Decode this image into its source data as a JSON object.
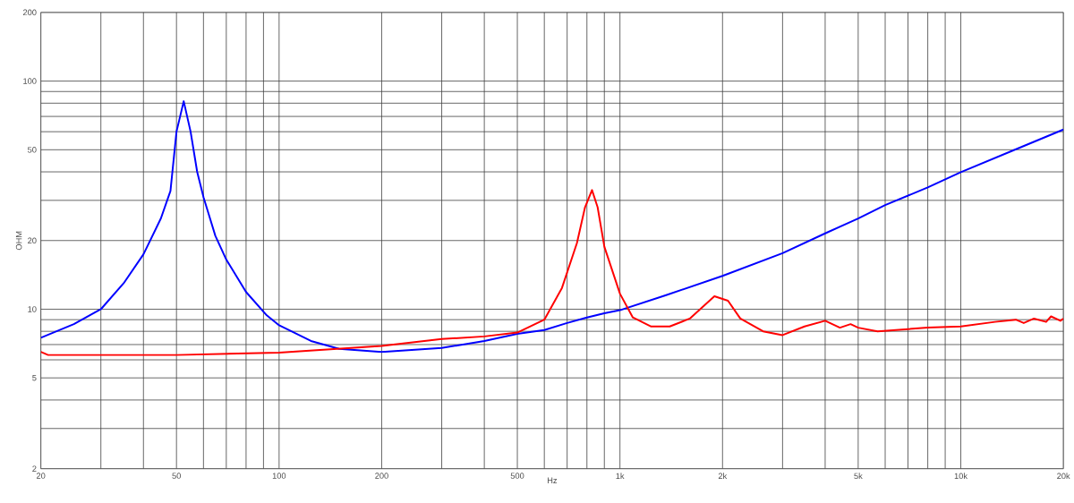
{
  "chart_data": {
    "type": "line",
    "xlabel": "Hz",
    "ylabel": "OHM",
    "log": "xy",
    "grid": true,
    "xlim": [
      20,
      20000
    ],
    "ylim": [
      2,
      200
    ],
    "xticks": [
      20,
      {
        "value": 30,
        "label": null
      },
      {
        "value": 40,
        "label": null
      },
      50,
      {
        "value": 60,
        "label": null
      },
      {
        "value": 70,
        "label": null
      },
      {
        "value": 80,
        "label": null
      },
      {
        "value": 90,
        "label": null
      },
      100,
      200,
      {
        "value": 300,
        "label": null
      },
      {
        "value": 400,
        "label": null
      },
      500,
      {
        "value": 600,
        "label": null
      },
      {
        "value": 700,
        "label": null
      },
      {
        "value": 800,
        "label": null
      },
      {
        "value": 900,
        "label": null
      },
      {
        "value": 1000,
        "label": "1k"
      },
      {
        "value": 2000,
        "label": "2k"
      },
      {
        "value": 3000,
        "label": null
      },
      {
        "value": 4000,
        "label": null
      },
      {
        "value": 5000,
        "label": "5k"
      },
      {
        "value": 6000,
        "label": null
      },
      {
        "value": 7000,
        "label": null
      },
      {
        "value": 8000,
        "label": null
      },
      {
        "value": 9000,
        "label": null
      },
      {
        "value": 10000,
        "label": "10k"
      },
      {
        "value": 20000,
        "label": "20k"
      }
    ],
    "yticks": [
      2,
      {
        "value": 3,
        "label": null
      },
      {
        "value": 4,
        "label": null
      },
      5,
      {
        "value": 6,
        "label": null
      },
      {
        "value": 7,
        "label": null
      },
      {
        "value": 8,
        "label": null
      },
      {
        "value": 9,
        "label": null
      },
      10,
      20,
      {
        "value": 30,
        "label": null
      },
      {
        "value": 40,
        "label": null
      },
      50,
      {
        "value": 60,
        "label": null
      },
      {
        "value": 70,
        "label": null
      },
      {
        "value": 80,
        "label": null
      },
      {
        "value": 90,
        "label": null
      },
      100,
      200
    ],
    "series": [
      {
        "color": "#0000ff",
        "x": [
          20,
          25,
          30,
          35,
          40,
          45,
          48,
          50,
          52.5,
          55,
          57.5,
          60,
          65,
          70,
          80,
          92,
          100,
          124,
          150,
          200,
          300,
          400,
          500,
          600,
          700,
          800,
          900,
          1000,
          1360,
          2000,
          3000,
          4000,
          5000,
          6000,
          8000,
          10000,
          15000,
          20000
        ],
        "values": [
          7.5,
          8.6,
          10,
          13,
          17.4,
          25,
          33,
          60,
          81.6,
          60,
          40,
          31,
          21,
          16.5,
          11.9,
          9.4,
          8.5,
          7.26,
          6.7,
          6.5,
          6.76,
          7.26,
          7.8,
          8.1,
          8.7,
          9.2,
          9.6,
          9.9,
          11.5,
          14.0,
          17.6,
          21.5,
          25.0,
          28.6,
          34.2,
          39.9,
          51.3,
          61.3
        ]
      },
      {
        "color": "#ff0000",
        "x": [
          20,
          21,
          50,
          100,
          200,
          300,
          400,
          500,
          600,
          676,
          748,
          790,
          828,
          860,
          900,
          1000,
          1091,
          1235,
          1400,
          1603,
          1893,
          2075,
          2255,
          2630,
          3000,
          3480,
          4000,
          4420,
          4750,
          5000,
          5700,
          8000,
          10000,
          12600,
          14500,
          15300,
          16400,
          17800,
          18400,
          19600,
          20000
        ],
        "values": [
          6.5,
          6.3,
          6.3,
          6.45,
          6.9,
          7.4,
          7.6,
          7.9,
          9.0,
          12.4,
          19.5,
          28,
          33.3,
          28,
          18.8,
          11.7,
          9.2,
          8.4,
          8.4,
          9.1,
          11.4,
          10.9,
          9.1,
          8.0,
          7.7,
          8.4,
          8.9,
          8.3,
          8.6,
          8.3,
          8.0,
          8.3,
          8.4,
          8.8,
          9.0,
          8.7,
          9.1,
          8.8,
          9.3,
          8.9,
          9.1
        ]
      }
    ]
  }
}
